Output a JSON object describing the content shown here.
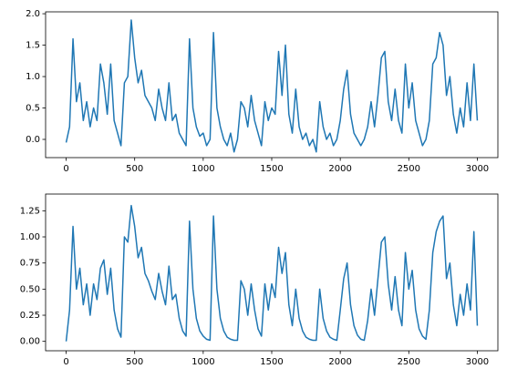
{
  "chart_data": [
    {
      "type": "line",
      "color": "#1f77b4",
      "x": [
        0,
        25,
        50,
        75,
        100,
        125,
        150,
        175,
        200,
        225,
        250,
        275,
        300,
        325,
        350,
        375,
        400,
        425,
        450,
        475,
        500,
        525,
        550,
        575,
        600,
        625,
        650,
        675,
        700,
        725,
        750,
        775,
        800,
        825,
        850,
        875,
        900,
        925,
        950,
        975,
        1000,
        1025,
        1050,
        1075,
        1100,
        1125,
        1150,
        1175,
        1200,
        1225,
        1250,
        1275,
        1300,
        1325,
        1350,
        1375,
        1400,
        1425,
        1450,
        1475,
        1500,
        1525,
        1550,
        1575,
        1600,
        1625,
        1650,
        1675,
        1700,
        1725,
        1750,
        1775,
        1800,
        1825,
        1850,
        1875,
        1900,
        1925,
        1950,
        1975,
        2000,
        2025,
        2050,
        2075,
        2100,
        2125,
        2150,
        2175,
        2200,
        2225,
        2250,
        2275,
        2300,
        2325,
        2350,
        2375,
        2400,
        2425,
        2450,
        2475,
        2500,
        2525,
        2550,
        2575,
        2600,
        2625,
        2650,
        2675,
        2700,
        2725,
        2750,
        2775,
        2800,
        2825,
        2850,
        2875,
        2900,
        2925,
        2950,
        2975,
        3000
      ],
      "values": [
        -0.05,
        0.2,
        1.6,
        0.6,
        0.9,
        0.3,
        0.6,
        0.2,
        0.5,
        0.3,
        1.2,
        0.9,
        0.4,
        1.2,
        0.3,
        0.1,
        -0.1,
        0.9,
        1.0,
        1.9,
        1.3,
        0.9,
        1.1,
        0.7,
        0.6,
        0.5,
        0.3,
        0.8,
        0.5,
        0.3,
        0.9,
        0.3,
        0.4,
        0.1,
        0.0,
        -0.1,
        1.6,
        0.5,
        0.2,
        0.05,
        0.1,
        -0.1,
        0.0,
        1.7,
        0.5,
        0.2,
        0.0,
        -0.1,
        0.1,
        -0.2,
        0.0,
        0.6,
        0.5,
        0.2,
        0.7,
        0.3,
        0.1,
        -0.1,
        0.6,
        0.3,
        0.5,
        0.4,
        1.4,
        0.7,
        1.5,
        0.4,
        0.1,
        0.8,
        0.2,
        0.0,
        0.1,
        -0.1,
        0.0,
        -0.2,
        0.6,
        0.2,
        0.0,
        0.1,
        -0.1,
        0.0,
        0.3,
        0.8,
        1.1,
        0.4,
        0.1,
        0.0,
        -0.1,
        0.0,
        0.2,
        0.6,
        0.2,
        0.7,
        1.3,
        1.4,
        0.6,
        0.3,
        0.8,
        0.3,
        0.1,
        1.2,
        0.5,
        0.9,
        0.3,
        0.1,
        -0.1,
        0.0,
        0.3,
        1.2,
        1.3,
        1.7,
        1.5,
        0.7,
        1.0,
        0.4,
        0.1,
        0.5,
        0.2,
        0.9,
        0.3,
        1.2,
        0.3
      ],
      "xlim": [
        -150,
        3150
      ],
      "xticks": [
        0,
        500,
        1000,
        1500,
        2000,
        2500,
        3000
      ],
      "ylim": [
        -0.29,
        2.03
      ],
      "yticks": [
        {
          "value": 0,
          "label": "0.0"
        },
        {
          "value": 0.5,
          "label": "0.5"
        },
        {
          "value": 1,
          "label": "1.0"
        },
        {
          "value": 1.5,
          "label": "1.5"
        },
        {
          "value": 2,
          "label": "2.0"
        }
      ]
    },
    {
      "type": "line",
      "color": "#1f77b4",
      "x": [
        0,
        25,
        50,
        75,
        100,
        125,
        150,
        175,
        200,
        225,
        250,
        275,
        300,
        325,
        350,
        375,
        400,
        425,
        450,
        475,
        500,
        525,
        550,
        575,
        600,
        625,
        650,
        675,
        700,
        725,
        750,
        775,
        800,
        825,
        850,
        875,
        900,
        925,
        950,
        975,
        1000,
        1025,
        1050,
        1075,
        1100,
        1125,
        1150,
        1175,
        1200,
        1225,
        1250,
        1275,
        1300,
        1325,
        1350,
        1375,
        1400,
        1425,
        1450,
        1475,
        1500,
        1525,
        1550,
        1575,
        1600,
        1625,
        1650,
        1675,
        1700,
        1725,
        1750,
        1775,
        1800,
        1825,
        1850,
        1875,
        1900,
        1925,
        1950,
        1975,
        2000,
        2025,
        2050,
        2075,
        2100,
        2125,
        2150,
        2175,
        2200,
        2225,
        2250,
        2275,
        2300,
        2325,
        2350,
        2375,
        2400,
        2425,
        2450,
        2475,
        2500,
        2525,
        2550,
        2575,
        2600,
        2625,
        2650,
        2675,
        2700,
        2725,
        2750,
        2775,
        2800,
        2825,
        2850,
        2875,
        2900,
        2925,
        2950,
        2975,
        3000
      ],
      "values": [
        0,
        0.3,
        1.1,
        0.5,
        0.7,
        0.35,
        0.55,
        0.25,
        0.55,
        0.4,
        0.7,
        0.78,
        0.45,
        0.7,
        0.3,
        0.12,
        0.04,
        1.0,
        0.95,
        1.3,
        1.1,
        0.8,
        0.9,
        0.65,
        0.58,
        0.48,
        0.4,
        0.65,
        0.48,
        0.35,
        0.72,
        0.4,
        0.45,
        0.22,
        0.1,
        0.05,
        1.15,
        0.5,
        0.22,
        0.1,
        0.05,
        0.02,
        0.01,
        1.2,
        0.5,
        0.22,
        0.1,
        0.04,
        0.02,
        0.01,
        0.01,
        0.58,
        0.5,
        0.25,
        0.55,
        0.3,
        0.12,
        0.05,
        0.55,
        0.3,
        0.55,
        0.42,
        0.9,
        0.65,
        0.85,
        0.35,
        0.15,
        0.5,
        0.22,
        0.1,
        0.04,
        0.02,
        0.01,
        0.01,
        0.5,
        0.22,
        0.1,
        0.04,
        0.02,
        0.01,
        0.3,
        0.6,
        0.75,
        0.35,
        0.15,
        0.06,
        0.02,
        0.01,
        0.2,
        0.5,
        0.25,
        0.6,
        0.95,
        1.0,
        0.55,
        0.3,
        0.62,
        0.3,
        0.15,
        0.85,
        0.5,
        0.68,
        0.3,
        0.12,
        0.05,
        0.02,
        0.3,
        0.85,
        1.05,
        1.15,
        1.2,
        0.6,
        0.75,
        0.35,
        0.15,
        0.45,
        0.25,
        0.55,
        0.3,
        1.05,
        0.15
      ],
      "xlim": [
        -150,
        3150
      ],
      "xticks": [
        0,
        500,
        1000,
        1500,
        2000,
        2500,
        3000
      ],
      "ylim": [
        -0.09,
        1.41
      ],
      "yticks": [
        {
          "value": 0,
          "label": "0.00"
        },
        {
          "value": 0.25,
          "label": "0.25"
        },
        {
          "value": 0.5,
          "label": "0.50"
        },
        {
          "value": 0.75,
          "label": "0.75"
        },
        {
          "value": 1,
          "label": "1.00"
        },
        {
          "value": 1.25,
          "label": "1.25"
        }
      ]
    }
  ]
}
